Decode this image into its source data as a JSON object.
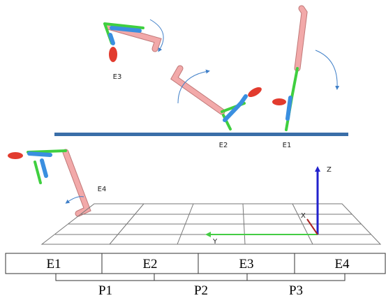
{
  "poses": [
    {
      "label": "E3"
    },
    {
      "label": "E2"
    },
    {
      "label": "E1"
    },
    {
      "label": "E4"
    }
  ],
  "axes": {
    "z": "Z",
    "x": "X",
    "y": "Y"
  },
  "table": {
    "events": [
      "E1",
      "E2",
      "E3",
      "E4"
    ],
    "phases": [
      "P1",
      "P2",
      "P3"
    ]
  }
}
